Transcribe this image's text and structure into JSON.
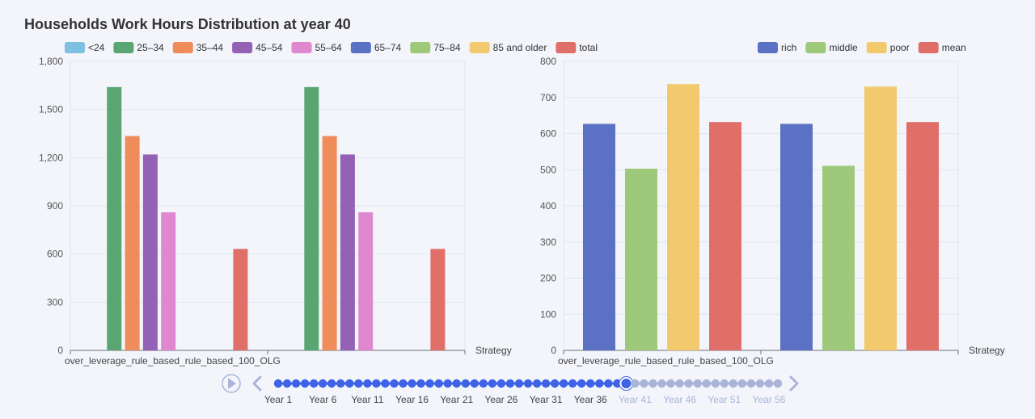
{
  "title": "Households Work Hours Distribution at year 40",
  "colors": {
    "age": [
      "#7fbfdf",
      "#5aa673",
      "#ef8c5a",
      "#9462b4",
      "#e088cf",
      "#5b71c4",
      "#9ec97b",
      "#f2c96d",
      "#e06f6a"
    ],
    "wealth": [
      "#5b71c4",
      "#9ec97b",
      "#f2c96d",
      "#e06f6a"
    ],
    "timeline_active": "#3f63e6",
    "timeline_inactive": "#a9b4d8",
    "grid": "#e1e5ef"
  },
  "chart_data": [
    {
      "type": "bar",
      "xlabel": "Strategy",
      "categories": [
        "over_leverage_rule_based_rule_based_100_OLG",
        ""
      ],
      "ylim": [
        0,
        1800
      ],
      "yticks": [
        "0",
        "300",
        "600",
        "900",
        "1,200",
        "1,500",
        "1,800"
      ],
      "grid": true,
      "legend_placement": "top-left",
      "series": [
        {
          "name": "<24",
          "values": [
            0,
            0
          ]
        },
        {
          "name": "25–34",
          "values": [
            1640,
            1640
          ]
        },
        {
          "name": "35–44",
          "values": [
            1335,
            1335
          ]
        },
        {
          "name": "45–54",
          "values": [
            1220,
            1220
          ]
        },
        {
          "name": "55–64",
          "values": [
            860,
            860
          ]
        },
        {
          "name": "65–74",
          "values": [
            0,
            0
          ]
        },
        {
          "name": "75–84",
          "values": [
            0,
            0
          ]
        },
        {
          "name": "85 and older",
          "values": [
            0,
            0
          ]
        },
        {
          "name": "total",
          "values": [
            632,
            632
          ]
        }
      ]
    },
    {
      "type": "bar",
      "xlabel": "Strategy",
      "categories": [
        "over_leverage_rule_based_rule_based_100_OLG",
        ""
      ],
      "ylim": [
        0,
        800
      ],
      "yticks": [
        "0",
        "100",
        "200",
        "300",
        "400",
        "500",
        "600",
        "700",
        "800"
      ],
      "grid": true,
      "legend_placement": "top-right",
      "series": [
        {
          "name": "rich",
          "values": [
            627,
            627
          ]
        },
        {
          "name": "middle",
          "values": [
            503,
            511
          ]
        },
        {
          "name": "poor",
          "values": [
            737,
            730
          ]
        },
        {
          "name": "mean",
          "values": [
            632,
            632
          ]
        }
      ]
    }
  ],
  "timeline": {
    "labels": [
      "Year 1",
      "Year 6",
      "Year 11",
      "Year 16",
      "Year 21",
      "Year 26",
      "Year 31",
      "Year 36",
      "Year 41",
      "Year 46",
      "Year 51",
      "Year 56"
    ],
    "total_points": 57,
    "current_point": 40,
    "play_icon": "play-icon",
    "prev_icon": "chevron-left-icon",
    "next_icon": "chevron-right-icon"
  }
}
